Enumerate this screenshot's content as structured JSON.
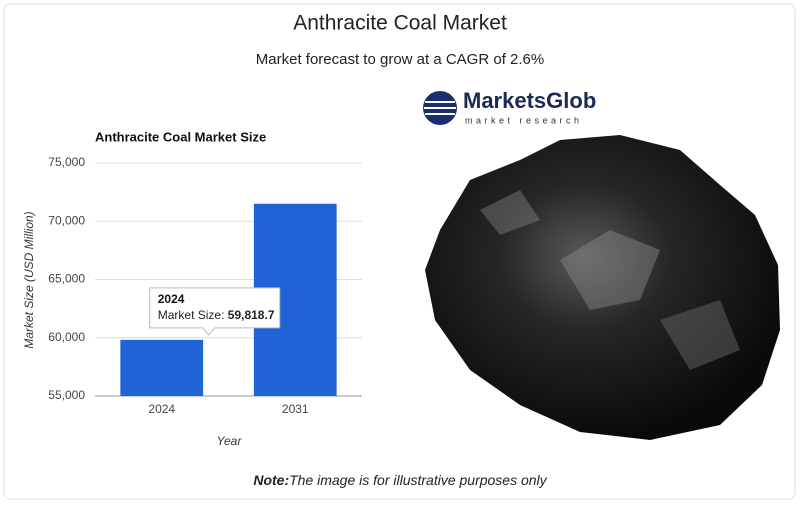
{
  "header": {
    "title": "Anthracite Coal Market",
    "subtitle": "Market forecast to grow at a CAGR of 2.6%"
  },
  "chart_data": {
    "type": "bar",
    "title": "Anthracite Coal Market Size",
    "x_label": "Year",
    "y_label": "Market Size (USD Million)",
    "categories": [
      "2024",
      "2031"
    ],
    "values": [
      59818.7,
      71500
    ],
    "value_labels": [
      "59,818.7",
      null
    ],
    "tooltip_label": "Market Size:",
    "color": "#1f63d6",
    "grid": true,
    "ylim": [
      55000,
      75000
    ],
    "yticks": [
      {
        "value": 55000,
        "label": "55,000"
      },
      {
        "value": 60000,
        "label": "60,000"
      },
      {
        "value": 65000,
        "label": "65,000"
      },
      {
        "value": 70000,
        "label": "70,000"
      },
      {
        "value": 75000,
        "label": "75,000"
      }
    ]
  },
  "logo": {
    "name": "MarketsGlob",
    "tagline": "market research"
  },
  "note": {
    "label": "Note:",
    "text": "The image is for illustrative purposes only"
  }
}
